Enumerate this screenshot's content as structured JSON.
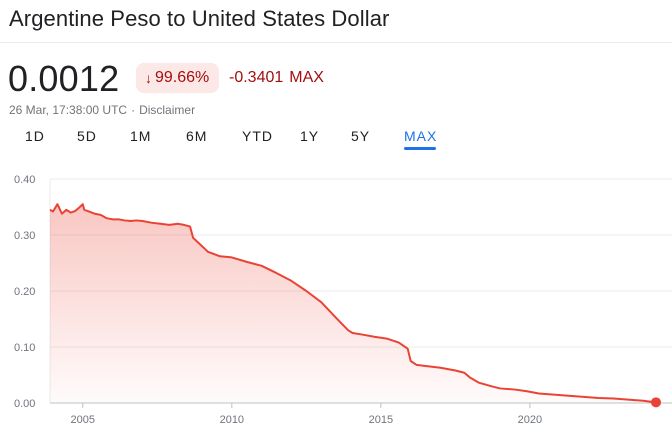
{
  "header": {
    "title": "Argentine Peso to United States Dollar"
  },
  "quote": {
    "price": "0.0012",
    "change_arrow_icon": "arrow-down-icon",
    "change_percent": "99.66%",
    "change_absolute": "-0.3401",
    "change_period": "MAX",
    "timestamp": "26 Mar, 17:38:00 UTC",
    "separator": "·",
    "disclaimer": "Disclaimer"
  },
  "colors": {
    "negative": "#a50e0e",
    "negative_bg": "#fce8e6",
    "line": "#ea4335",
    "accent": "#1a73e8"
  },
  "range_tabs": [
    {
      "label": "1D",
      "active": false
    },
    {
      "label": "5D",
      "active": false
    },
    {
      "label": "1M",
      "active": false
    },
    {
      "label": "6M",
      "active": false
    },
    {
      "label": "YTD",
      "active": false
    },
    {
      "label": "1Y",
      "active": false
    },
    {
      "label": "5Y",
      "active": false
    },
    {
      "label": "MAX",
      "active": true
    }
  ],
  "chart_data": {
    "type": "area",
    "title": "",
    "xlabel": "",
    "ylabel": "",
    "y_ticks": [
      "0.40",
      "0.30",
      "0.20",
      "0.10",
      "0.00"
    ],
    "x_ticks": [
      "2005",
      "2010",
      "2015",
      "2020"
    ],
    "ylim": [
      0,
      0.4
    ],
    "xlim": [
      2003.9,
      2024.23
    ],
    "grid": true,
    "series": [
      {
        "x": [
          2003.9,
          2004.0,
          2004.15,
          2004.3,
          2004.45,
          2004.6,
          2004.75,
          2004.9,
          2005.0,
          2005.05,
          2005.2,
          2005.4,
          2005.6,
          2005.8,
          2006.0,
          2006.2,
          2006.4,
          2006.6,
          2006.8,
          2007.0,
          2007.3,
          2007.6,
          2007.9,
          2008.2,
          2008.4,
          2008.6,
          2008.7,
          2008.9,
          2009.2,
          2009.6,
          2010.0,
          2010.5,
          2011.0,
          2011.5,
          2012.0,
          2012.5,
          2013.0,
          2013.5,
          2013.9,
          2014.05,
          2014.4,
          2014.8,
          2015.2,
          2015.6,
          2015.9,
          2016.0,
          2016.2,
          2016.5,
          2017.0,
          2017.5,
          2017.8,
          2018.0,
          2018.3,
          2018.7,
          2019.0,
          2019.5,
          2019.9,
          2020.3,
          2020.8,
          2021.3,
          2021.8,
          2022.3,
          2022.8,
          2023.3,
          2023.8,
          2024.23
        ],
        "y": [
          0.345,
          0.342,
          0.355,
          0.338,
          0.345,
          0.34,
          0.343,
          0.35,
          0.355,
          0.345,
          0.342,
          0.338,
          0.336,
          0.33,
          0.328,
          0.328,
          0.326,
          0.325,
          0.326,
          0.325,
          0.322,
          0.32,
          0.318,
          0.32,
          0.318,
          0.315,
          0.295,
          0.285,
          0.27,
          0.262,
          0.26,
          0.252,
          0.245,
          0.232,
          0.218,
          0.2,
          0.18,
          0.152,
          0.13,
          0.125,
          0.122,
          0.118,
          0.115,
          0.108,
          0.097,
          0.075,
          0.068,
          0.066,
          0.063,
          0.058,
          0.054,
          0.045,
          0.036,
          0.03,
          0.026,
          0.024,
          0.021,
          0.017,
          0.015,
          0.013,
          0.011,
          0.009,
          0.008,
          0.006,
          0.004,
          0.0012
        ]
      }
    ]
  }
}
